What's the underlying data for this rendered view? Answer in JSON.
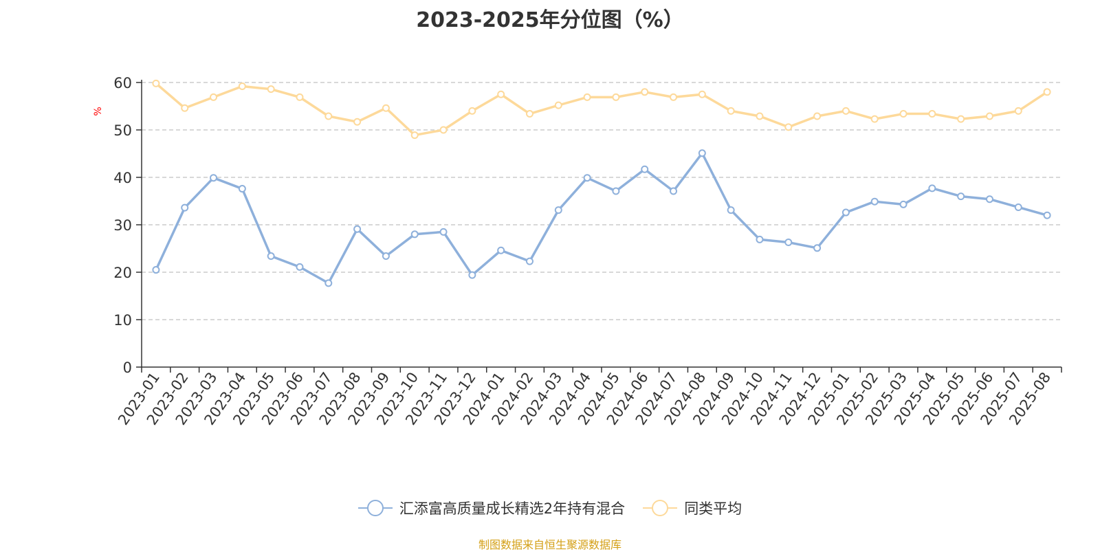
{
  "chart_data": {
    "type": "line",
    "title": "2023-2025年分位图（%）",
    "ylabel": "%",
    "ylim": [
      0,
      60
    ],
    "yticks": [
      0,
      10,
      20,
      30,
      40,
      50,
      60
    ],
    "grid": "horizontal-dashed",
    "legend_position": "bottom",
    "categories": [
      "2023-01",
      "2023-02",
      "2023-03",
      "2023-04",
      "2023-05",
      "2023-06",
      "2023-07",
      "2023-08",
      "2023-09",
      "2023-10",
      "2023-11",
      "2023-12",
      "2024-01",
      "2024-02",
      "2024-03",
      "2024-04",
      "2024-05",
      "2024-06",
      "2024-07",
      "2024-08",
      "2024-09",
      "2024-10",
      "2024-11",
      "2024-12",
      "2025-01",
      "2025-02",
      "2025-03",
      "2025-04",
      "2025-05",
      "2025-06",
      "2025-07",
      "2025-08"
    ],
    "series": [
      {
        "name": "汇添富高质量成长精选2年持有混合",
        "color": "#8eb0db",
        "values": [
          20.5,
          33.6,
          39.9,
          37.6,
          23.4,
          21.1,
          17.7,
          29.1,
          23.4,
          28.0,
          28.5,
          19.4,
          24.6,
          22.3,
          33.1,
          39.9,
          37.1,
          41.7,
          37.1,
          45.1,
          33.1,
          26.9,
          26.3,
          25.1,
          32.6,
          34.9,
          34.3,
          37.7,
          36.0,
          35.4,
          33.7,
          32.0
        ]
      },
      {
        "name": "同类平均",
        "color": "#fdd99a",
        "values": [
          59.8,
          54.6,
          56.9,
          59.2,
          58.6,
          56.9,
          52.9,
          51.7,
          54.6,
          48.9,
          50.0,
          54.0,
          57.5,
          53.4,
          55.2,
          56.9,
          56.9,
          58.0,
          56.9,
          57.5,
          54.0,
          52.9,
          50.6,
          52.9,
          54.0,
          52.3,
          53.4,
          53.4,
          52.3,
          52.9,
          54.0,
          58.0
        ]
      }
    ]
  },
  "source_note": "制图数据来自恒生聚源数据库"
}
